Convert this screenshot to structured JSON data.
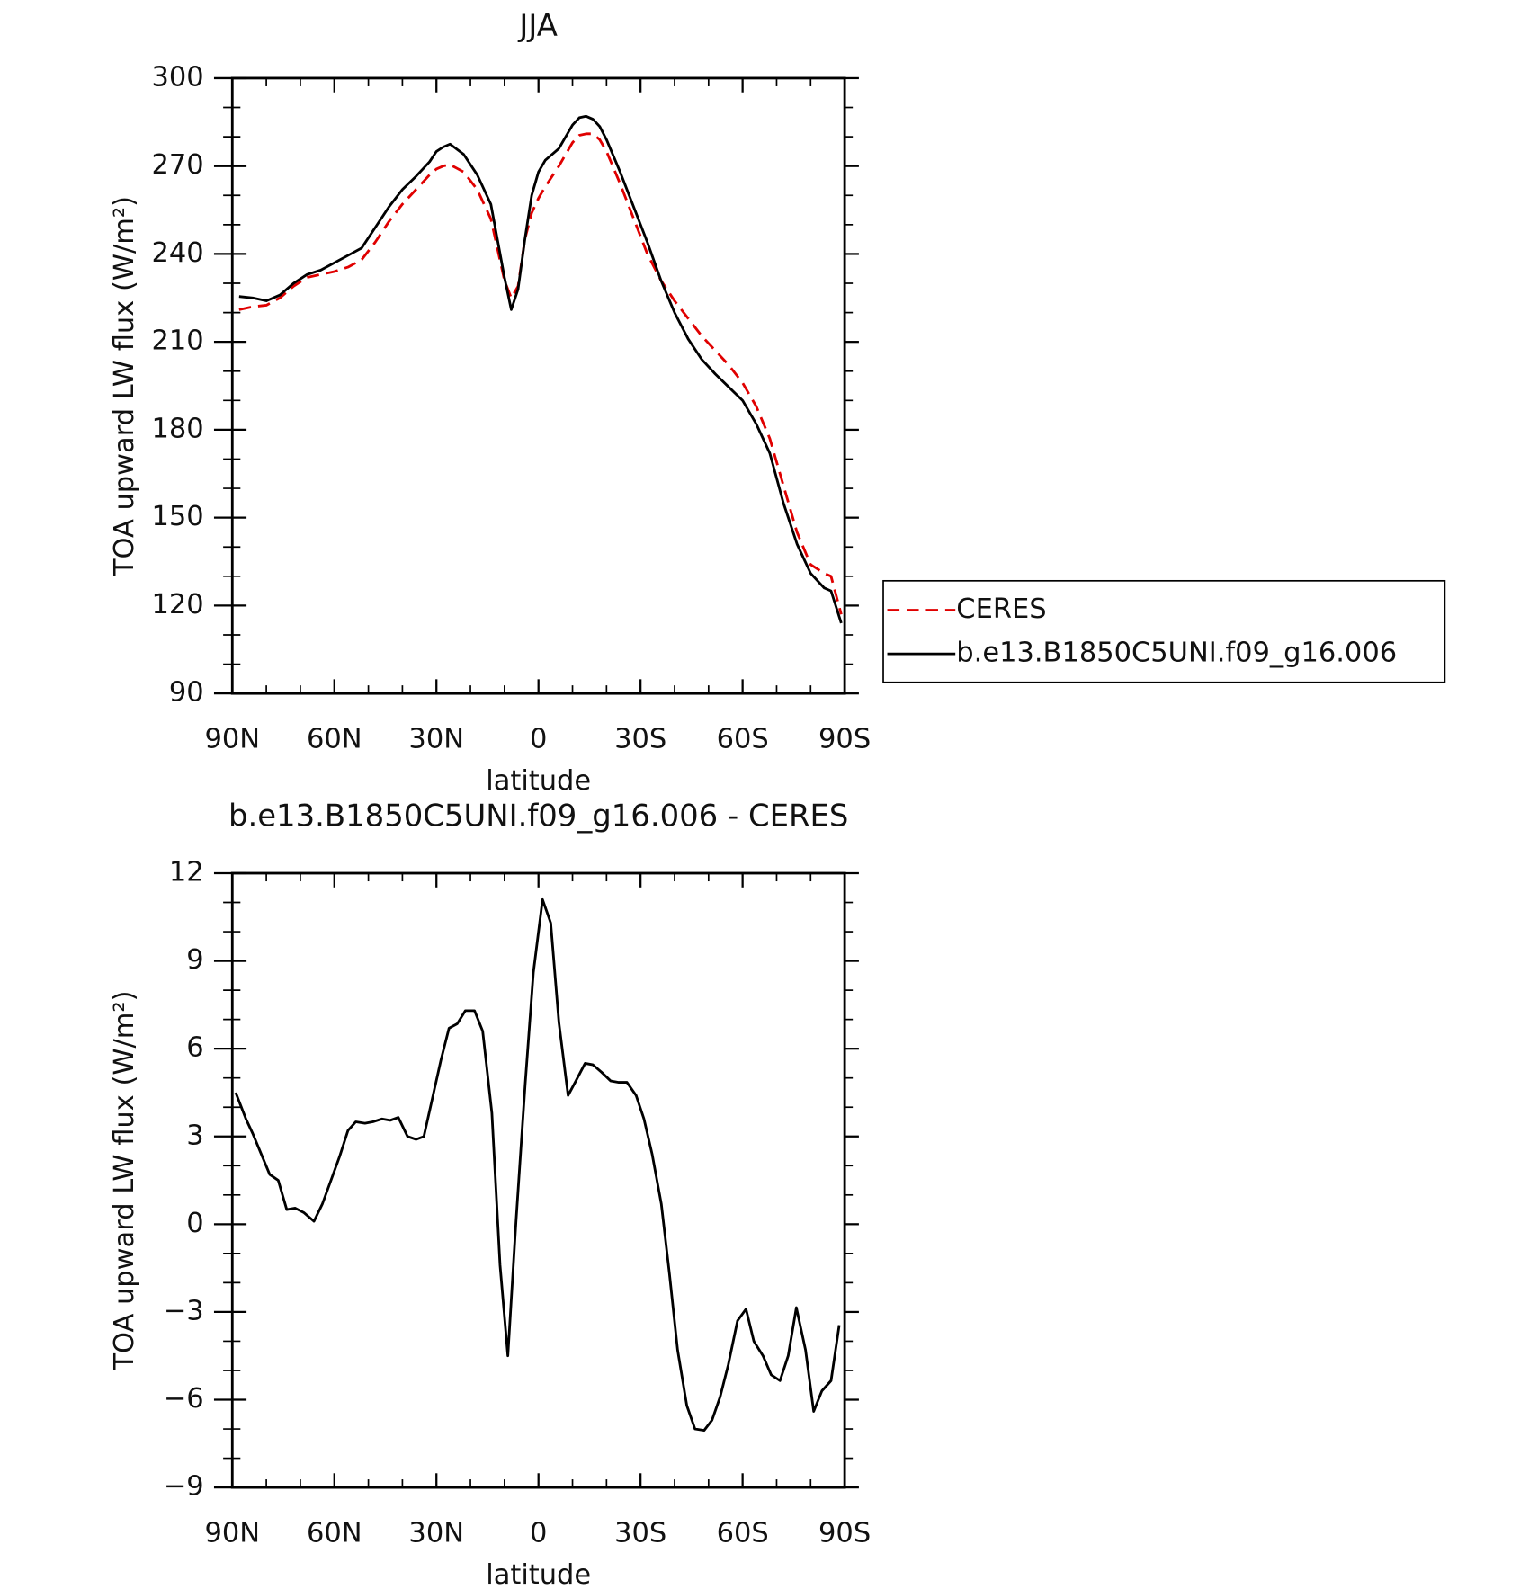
{
  "chart_data": [
    {
      "type": "line",
      "title": "JJA",
      "x_label": "latitude",
      "y_label": "TOA upward LW flux (W/m²)",
      "xlim": [
        90,
        -90
      ],
      "xticks": [
        {
          "value": 90,
          "label": "90N"
        },
        {
          "value": 60,
          "label": "60N"
        },
        {
          "value": 30,
          "label": "30N"
        },
        0,
        {
          "value": -30,
          "label": "30S"
        },
        {
          "value": -60,
          "label": "60S"
        },
        {
          "value": -90,
          "label": "90S"
        }
      ],
      "ylim": [
        90,
        300
      ],
      "yticks": [
        90,
        120,
        150,
        180,
        210,
        240,
        270,
        300
      ],
      "legend": "right",
      "x": [
        88,
        84,
        80,
        76,
        72,
        68,
        64,
        60,
        56,
        52,
        48,
        44,
        40,
        36,
        32,
        30,
        28,
        26,
        22,
        18,
        14,
        10,
        8,
        6,
        4,
        2,
        0,
        -2,
        -6,
        -8,
        -10,
        -12,
        -14,
        -16,
        -18,
        -20,
        -24,
        -28,
        -32,
        -36,
        -40,
        -44,
        -48,
        -52,
        -56,
        -60,
        -64,
        -68,
        -72,
        -76,
        -80,
        -84,
        -86,
        -89
      ],
      "series": [
        {
          "name": "CERES",
          "color": "#e00000",
          "line_style": "dashed",
          "values": [
            221,
            222,
            222.5,
            225,
            229,
            232,
            233,
            234,
            235.5,
            238,
            244,
            251,
            257,
            262,
            267,
            269,
            270,
            270.5,
            268,
            262,
            252,
            231,
            225,
            229,
            245,
            254,
            259,
            263,
            270,
            274,
            278,
            280.5,
            281,
            281,
            279,
            275,
            264,
            252,
            240,
            231,
            224,
            218,
            212,
            207,
            202,
            196,
            188,
            177,
            161,
            145,
            134,
            131,
            130,
            117
          ]
        },
        {
          "name": "b.e13.B1850C5UNI.f09_g16.006",
          "color": "#000000",
          "line_style": "solid",
          "values": [
            225.5,
            225,
            224,
            226,
            230,
            233,
            234.5,
            237,
            239.5,
            242,
            249,
            256,
            262,
            266.5,
            271.5,
            275,
            276.5,
            277.5,
            274,
            267,
            257,
            232,
            221,
            228,
            245,
            260,
            268,
            272,
            276,
            280,
            284,
            286.5,
            287,
            286,
            283.5,
            279,
            268,
            256,
            244,
            231,
            220,
            211,
            204,
            199,
            194.5,
            190,
            182,
            172,
            155,
            141,
            131,
            126,
            125,
            114
          ]
        }
      ]
    },
    {
      "type": "line",
      "title": "b.e13.B1850C5UNI.f09_g16.006 - CERES",
      "x_label": "latitude",
      "y_label": "TOA upward LW flux (W/m²)",
      "xlim": [
        90,
        -90
      ],
      "xticks": [
        {
          "value": 90,
          "label": "90N"
        },
        {
          "value": 60,
          "label": "60N"
        },
        {
          "value": 30,
          "label": "30N"
        },
        0,
        {
          "value": -30,
          "label": "30S"
        },
        {
          "value": -60,
          "label": "60S"
        },
        {
          "value": -90,
          "label": "90S"
        }
      ],
      "ylim": [
        -9,
        12
      ],
      "yticks": [
        {
          "value": -9,
          "label": "−9"
        },
        {
          "value": -6,
          "label": "−6"
        },
        {
          "value": -3,
          "label": "−3"
        },
        0,
        3,
        6,
        9,
        12
      ],
      "x": [
        89,
        86,
        84,
        81.5,
        79,
        76.5,
        74,
        71.5,
        69,
        66,
        63.5,
        61,
        58.5,
        56,
        53.7,
        51,
        48.7,
        46,
        43.6,
        41.2,
        38.5,
        36,
        33.7,
        31,
        28.7,
        26.3,
        23.9,
        21.5,
        18.8,
        16.4,
        13.7,
        11.3,
        9,
        6.6,
        3.9,
        1.5,
        -1.2,
        -3.6,
        -6,
        -8.7,
        -11,
        -13.7,
        -16,
        -18.5,
        -21.2,
        -23.6,
        -26,
        -28.7,
        -31,
        -33.4,
        -36.1,
        -38.5,
        -40.9,
        -43.6,
        -46,
        -48.7,
        -51,
        -53.4,
        -55.8,
        -58.5,
        -61,
        -63.3,
        -66,
        -68.4,
        -71,
        -73.4,
        -75.8,
        -78.5,
        -80.9,
        -83.3,
        -86,
        -88.4
      ],
      "series": [
        {
          "color": "#000000",
          "line_style": "solid",
          "values": [
            4.5,
            3.6,
            3.1,
            2.4,
            1.7,
            1.5,
            0.5,
            0.55,
            0.4,
            0.1,
            0.7,
            1.5,
            2.3,
            3.2,
            3.5,
            3.45,
            3.5,
            3.6,
            3.55,
            3.65,
            3.0,
            2.9,
            3.0,
            4.4,
            5.6,
            6.7,
            6.85,
            7.3,
            7.3,
            6.6,
            3.8,
            -1.4,
            -4.5,
            0.1,
            4.8,
            8.6,
            11.1,
            10.3,
            6.9,
            4.4,
            4.9,
            5.5,
            5.45,
            5.2,
            4.9,
            4.85,
            4.85,
            4.4,
            3.6,
            2.4,
            0.7,
            -1.7,
            -4.3,
            -6.2,
            -7.0,
            -7.05,
            -6.7,
            -5.9,
            -4.8,
            -3.3,
            -2.9,
            -4.0,
            -4.5,
            -5.15,
            -5.35,
            -4.5,
            -2.85,
            -4.3,
            -6.4,
            -5.7,
            -5.35,
            -3.45
          ]
        }
      ]
    }
  ]
}
